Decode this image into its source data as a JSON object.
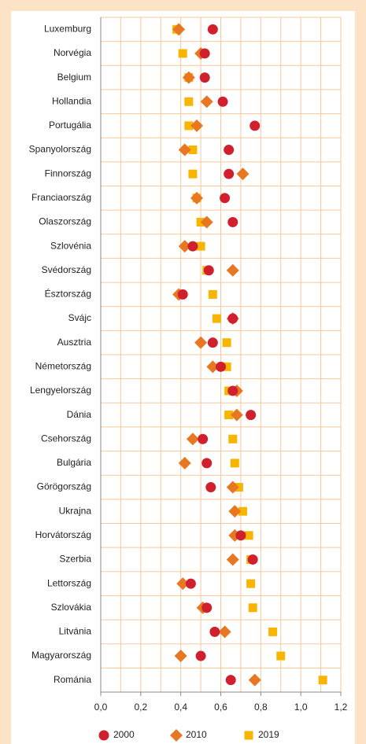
{
  "chart_data": {
    "type": "dot",
    "categories": [
      "Luxemburg",
      "Norvégia",
      "Belgium",
      "Hollandia",
      "Portugália",
      "Spanyolország",
      "Finnország",
      "Franciaország",
      "Olaszország",
      "Szlovénia",
      "Svédország",
      "Észtország",
      "Svájc",
      "Ausztria",
      "Németország",
      "Lengyelország",
      "Dánia",
      "Csehország",
      "Bulgária",
      "Görögország",
      "Ukrajna",
      "Horvátország",
      "Szerbia",
      "Lettország",
      "Szlovákia",
      "Litvánia",
      "Magyarország",
      "Románia"
    ],
    "series": [
      {
        "name": "2000",
        "color": "#d0202e",
        "marker": "circle",
        "values": [
          0.56,
          0.52,
          0.52,
          0.61,
          0.77,
          0.64,
          0.64,
          0.62,
          0.66,
          0.46,
          0.54,
          0.41,
          0.66,
          0.56,
          0.6,
          0.66,
          0.75,
          0.51,
          0.53,
          0.55,
          null,
          0.7,
          0.76,
          0.45,
          0.53,
          0.57,
          0.5,
          0.65
        ]
      },
      {
        "name": "2010",
        "color": "#e87722",
        "marker": "diamond",
        "values": [
          0.39,
          0.5,
          0.44,
          0.53,
          0.48,
          0.42,
          0.71,
          0.48,
          0.53,
          0.42,
          0.66,
          0.39,
          0.66,
          0.5,
          0.56,
          0.68,
          0.68,
          0.46,
          0.42,
          0.66,
          0.67,
          0.67,
          0.66,
          0.41,
          0.51,
          0.62,
          0.4,
          0.77
        ]
      },
      {
        "name": "2019",
        "color": "#f7b500",
        "marker": "square",
        "values": [
          0.38,
          0.41,
          0.44,
          0.44,
          0.44,
          0.46,
          0.46,
          0.48,
          0.5,
          0.5,
          0.53,
          0.56,
          0.58,
          0.63,
          0.63,
          0.64,
          0.64,
          0.66,
          0.67,
          0.69,
          0.71,
          0.74,
          0.75,
          0.75,
          0.76,
          0.86,
          0.9,
          1.11
        ]
      }
    ],
    "xlim": [
      0,
      1.2
    ],
    "xticks": [
      {
        "value": 0,
        "label": "0,0"
      },
      {
        "value": 0.2,
        "label": "0,2"
      },
      {
        "value": 0.4,
        "label": "0,4"
      },
      {
        "value": 0.6,
        "label": "0,6"
      },
      {
        "value": 0.8,
        "label": "0,8"
      },
      {
        "value": 1.0,
        "label": "1,0"
      },
      {
        "value": 1.2,
        "label": "1,2"
      }
    ],
    "xgrid_minor": [
      0.1,
      0.3,
      0.5,
      0.7,
      0.9,
      1.1
    ],
    "grid": true,
    "legend": "bottom"
  }
}
